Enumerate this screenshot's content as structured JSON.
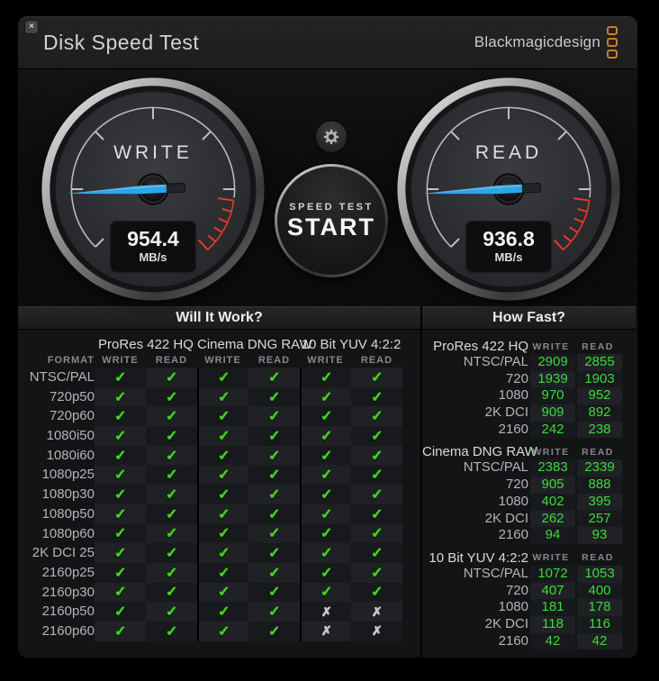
{
  "window": {
    "title": "Disk Speed Test",
    "brand": "Blackmagicdesign",
    "close_glyph": "×"
  },
  "gauges": {
    "write": {
      "label": "WRITE",
      "value": "954.4",
      "unit": "MB/s"
    },
    "read": {
      "label": "READ",
      "value": "936.8",
      "unit": "MB/s"
    }
  },
  "controls": {
    "start_line1": "SPEED TEST",
    "start_line2": "START",
    "gear_icon": "gear"
  },
  "will_it_work": {
    "title": "Will It Work?",
    "format_header": "FORMAT",
    "write_label": "WRITE",
    "read_label": "READ",
    "groups": [
      "ProRes 422 HQ",
      "Cinema DNG RAW",
      "10 Bit YUV 4:2:2"
    ],
    "formats": [
      "NTSC/PAL",
      "720p50",
      "720p60",
      "1080i50",
      "1080i60",
      "1080p25",
      "1080p30",
      "1080p50",
      "1080p60",
      "2K DCI 25",
      "2160p25",
      "2160p30",
      "2160p50",
      "2160p60"
    ],
    "results": [
      [
        1,
        1,
        1,
        1,
        1,
        1
      ],
      [
        1,
        1,
        1,
        1,
        1,
        1
      ],
      [
        1,
        1,
        1,
        1,
        1,
        1
      ],
      [
        1,
        1,
        1,
        1,
        1,
        1
      ],
      [
        1,
        1,
        1,
        1,
        1,
        1
      ],
      [
        1,
        1,
        1,
        1,
        1,
        1
      ],
      [
        1,
        1,
        1,
        1,
        1,
        1
      ],
      [
        1,
        1,
        1,
        1,
        1,
        1
      ],
      [
        1,
        1,
        1,
        1,
        1,
        1
      ],
      [
        1,
        1,
        1,
        1,
        1,
        1
      ],
      [
        1,
        1,
        1,
        1,
        1,
        1
      ],
      [
        1,
        1,
        1,
        1,
        1,
        1
      ],
      [
        1,
        1,
        1,
        1,
        0,
        0
      ],
      [
        1,
        1,
        1,
        1,
        0,
        0
      ]
    ]
  },
  "how_fast": {
    "title": "How Fast?",
    "write_label": "WRITE",
    "read_label": "READ",
    "sections": [
      {
        "name": "ProRes 422 HQ",
        "rows": [
          [
            "NTSC/PAL",
            "2909",
            "2855"
          ],
          [
            "720",
            "1939",
            "1903"
          ],
          [
            "1080",
            "970",
            "952"
          ],
          [
            "2K DCI",
            "909",
            "892"
          ],
          [
            "2160",
            "242",
            "238"
          ]
        ]
      },
      {
        "name": "Cinema DNG RAW",
        "rows": [
          [
            "NTSC/PAL",
            "2383",
            "2339"
          ],
          [
            "720",
            "905",
            "888"
          ],
          [
            "1080",
            "402",
            "395"
          ],
          [
            "2K DCI",
            "262",
            "257"
          ],
          [
            "2160",
            "94",
            "93"
          ]
        ]
      },
      {
        "name": "10 Bit YUV 4:2:2",
        "rows": [
          [
            "NTSC/PAL",
            "1072",
            "1053"
          ],
          [
            "720",
            "407",
            "400"
          ],
          [
            "1080",
            "181",
            "178"
          ],
          [
            "2K DCI",
            "118",
            "116"
          ],
          [
            "2160",
            "42",
            "42"
          ]
        ]
      }
    ]
  },
  "colors": {
    "accent_blue": "#2ba6e8",
    "check_green": "#41cf22",
    "value_green": "#3bdb3b",
    "warning_red": "#e8392a",
    "brand_orange": "#c87f2a"
  }
}
